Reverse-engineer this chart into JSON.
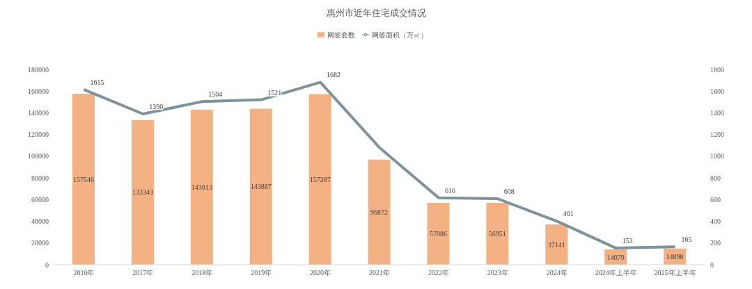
{
  "chart_data": {
    "type": "bar",
    "title": "惠州市近年住宅成交情况",
    "legend": "top",
    "categories": [
      "2016年",
      "2017年",
      "2018年",
      "2019年",
      "2020年",
      "2021年",
      "2022年",
      "2023年",
      "2024年",
      "2024年上半年",
      "2025年上半年"
    ],
    "series": [
      {
        "name": "网签套数",
        "color": "#f4b183",
        "values": [
          157546,
          133343,
          143013,
          143887,
          157287,
          96872,
          57086,
          56951,
          37141,
          14079,
          14898
        ],
        "value_labels": [
          "157546",
          "133343",
          "143013",
          "143887",
          "157287",
          "96872",
          "57086",
          "56951",
          "37141",
          "14079",
          "14898"
        ]
      },
      {
        "name": "网签面积（万㎡）",
        "type": "line",
        "axis": "y2",
        "color": "#7f929c",
        "marker": "none",
        "values": [
          1615,
          1390,
          1504,
          1521,
          1682,
          1080,
          616,
          608,
          401,
          153,
          165
        ],
        "value_labels": [
          "1615",
          "1390",
          "1504",
          "1521",
          "1682",
          null,
          "616",
          "608",
          "401",
          "153",
          "165"
        ]
      }
    ],
    "ylim": [
      0,
      180000
    ],
    "yticks": [
      0,
      20000,
      40000,
      60000,
      80000,
      100000,
      120000,
      140000,
      160000,
      180000
    ],
    "y2lim": [
      0,
      1800
    ],
    "y2ticks": [
      0,
      200,
      400,
      600,
      800,
      1000,
      1200,
      1400,
      1600,
      1800
    ]
  }
}
